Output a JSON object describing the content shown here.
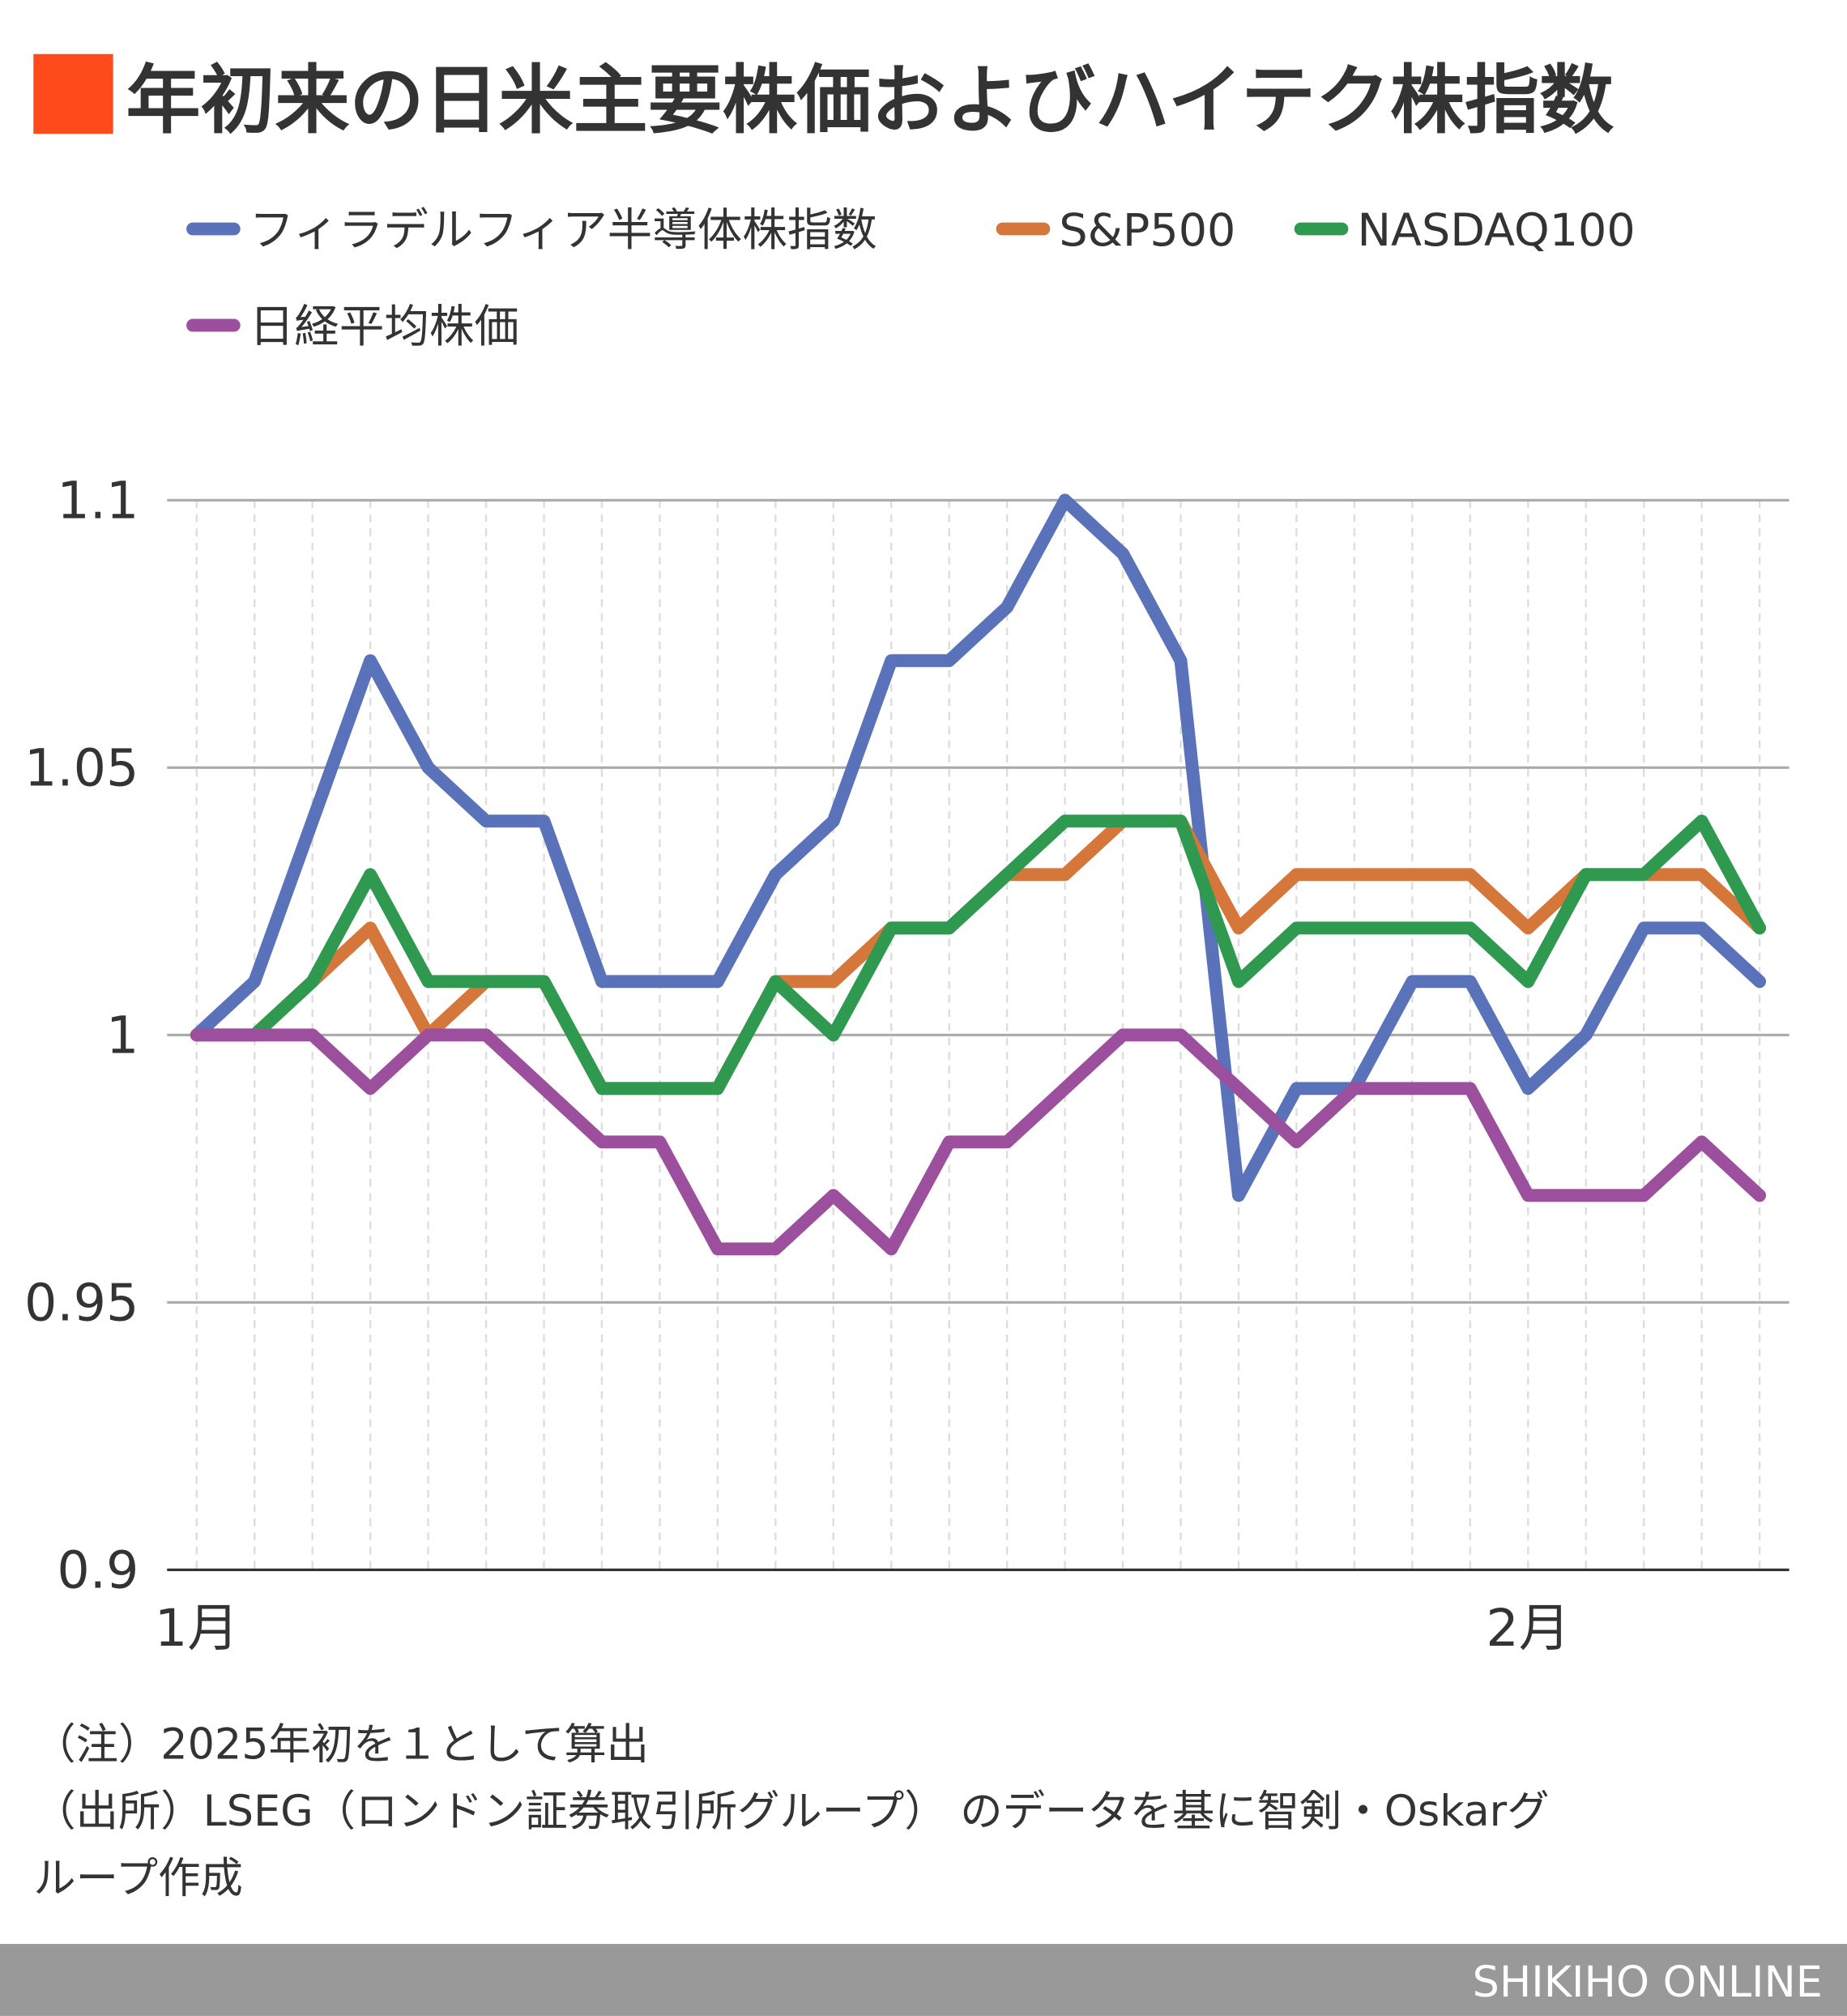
{
  "chart_data": {
    "type": "line",
    "title": "年初来の日米主要株価およびハイテク株指数",
    "xlabel": "",
    "ylabel": "",
    "x_tick_labels": [
      {
        "label": "1月",
        "index": 0
      },
      {
        "label": "2月",
        "index": 23
      }
    ],
    "y_ticks": [
      0.9,
      0.95,
      1,
      1.05,
      1.1
    ],
    "y_tick_labels": [
      "0.9",
      "0.95",
      "1",
      "1.05",
      "1.1"
    ],
    "ylim": [
      0.9,
      1.1
    ],
    "grid": true,
    "legend_placement": "top",
    "series": [
      {
        "name": "フィラデルフィア半導体株指数",
        "color": "#5a72b9",
        "values": [
          1.0,
          1.01,
          1.04,
          1.07,
          1.05,
          1.04,
          1.04,
          1.01,
          1.01,
          1.01,
          1.03,
          1.04,
          1.07,
          1.07,
          1.08,
          1.1,
          1.09,
          1.07,
          0.97,
          0.99,
          0.99,
          1.01,
          1.01,
          0.99,
          1.0,
          1.02,
          1.02,
          1.01
        ]
      },
      {
        "name": "S&P500",
        "color": "#d5773b",
        "values": [
          1.0,
          1.0,
          1.01,
          1.02,
          1.0,
          1.01,
          1.01,
          0.99,
          0.99,
          0.99,
          1.01,
          1.01,
          1.02,
          1.02,
          1.03,
          1.03,
          1.04,
          1.04,
          1.02,
          1.03,
          1.03,
          1.03,
          1.03,
          1.02,
          1.03,
          1.03,
          1.03,
          1.02
        ]
      },
      {
        "name": "NASDAQ100",
        "color": "#2f9a4f",
        "values": [
          1.0,
          1.0,
          1.01,
          1.03,
          1.01,
          1.01,
          1.01,
          0.99,
          0.99,
          0.99,
          1.01,
          1.0,
          1.02,
          1.02,
          1.03,
          1.04,
          1.04,
          1.04,
          1.01,
          1.02,
          1.02,
          1.02,
          1.02,
          1.01,
          1.03,
          1.03,
          1.04,
          1.02
        ]
      },
      {
        "name": "日経平均株価",
        "color": "#9c4f9c",
        "values": [
          1.0,
          1.0,
          1.0,
          0.99,
          1.0,
          1.0,
          0.99,
          0.98,
          0.98,
          0.96,
          0.96,
          0.97,
          0.96,
          0.98,
          0.98,
          0.99,
          1.0,
          1.0,
          0.99,
          0.98,
          0.99,
          0.99,
          0.99,
          0.97,
          0.97,
          0.97,
          0.98,
          0.97
        ]
      }
    ]
  },
  "accent_color": "#ff4a1c",
  "notes": [
    "（注）2025年初を１として算出",
    "（出所）LSEG（ロンドン証券取引所グループ） のデータを基に智剣・Oskarグ",
    "ループ作成"
  ],
  "footer": {
    "brand": "SHIKIHO ONLINE",
    "bar_color": "#999999"
  }
}
